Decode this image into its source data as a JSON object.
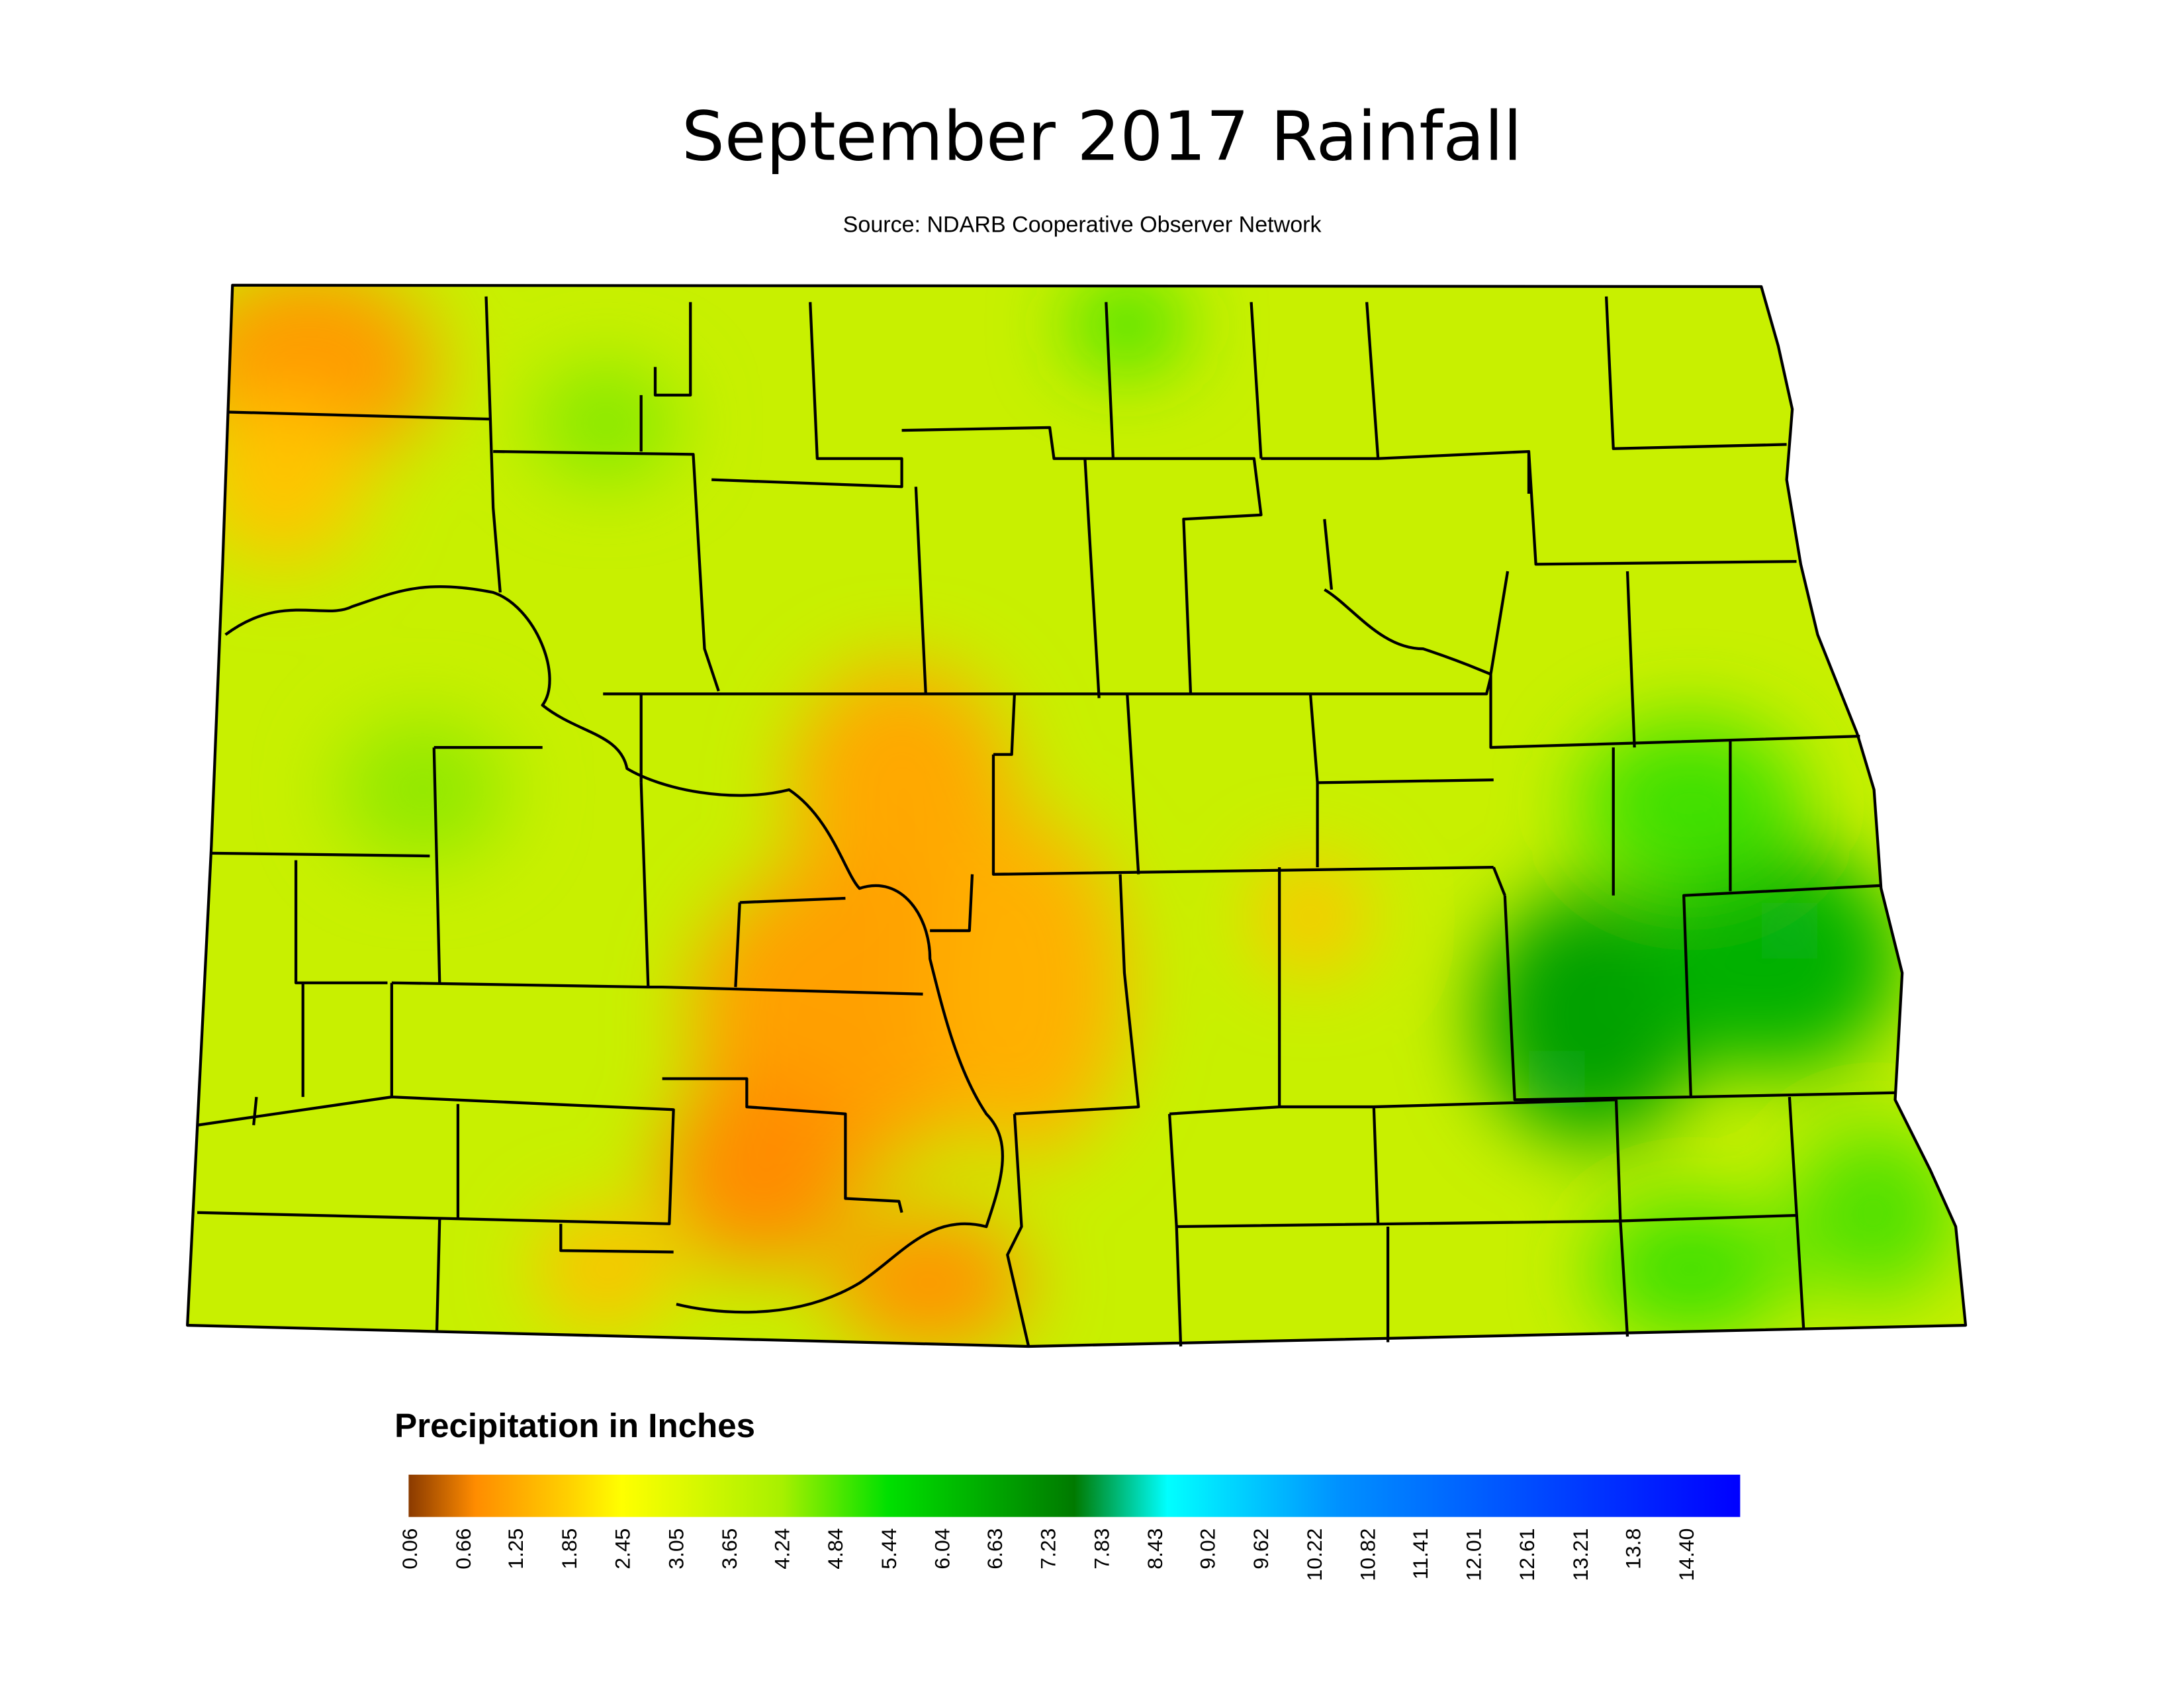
{
  "title": "September 2017 Rainfall",
  "source": "Source: NDARB Cooperative Observer Network",
  "legend": {
    "title": "Precipitation in Inches",
    "ticks": [
      0.06,
      0.66,
      1.25,
      1.85,
      2.45,
      3.05,
      3.65,
      4.24,
      4.84,
      5.44,
      6.04,
      6.63,
      7.23,
      7.83,
      8.43,
      9.02,
      9.62,
      10.22,
      10.82,
      11.41,
      12.01,
      12.61,
      13.21,
      13.8,
      {
        "value": 14.4,
        "label": "14.40"
      }
    ]
  }
}
